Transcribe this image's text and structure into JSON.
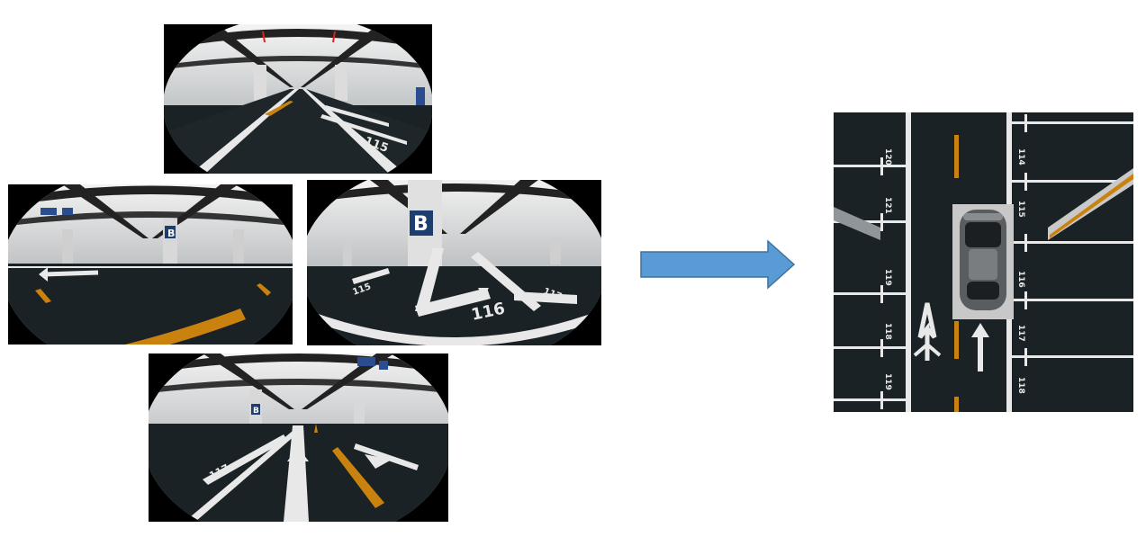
{
  "views": {
    "front": {
      "name": "front-fisheye-view",
      "spot_number": "115"
    },
    "left": {
      "name": "left-fisheye-view",
      "pillar_label": "B"
    },
    "right": {
      "name": "right-fisheye-view",
      "pillar_label": "B",
      "spot_number": "116",
      "spot_left": "115",
      "spot_right": "117"
    },
    "rear": {
      "name": "rear-fisheye-view",
      "pillar_label": "B",
      "spot_number": "117"
    }
  },
  "birdseye": {
    "left_spots": [
      "120",
      "121",
      "119",
      "118",
      "119"
    ],
    "right_spots": [
      "114",
      "115",
      "116",
      "117",
      "118"
    ]
  },
  "colors": {
    "arrow_fill": "#5b9bd5",
    "arrow_stroke": "#41719c",
    "lane_yellow": "#c9820d",
    "floor": "#1b2226"
  }
}
